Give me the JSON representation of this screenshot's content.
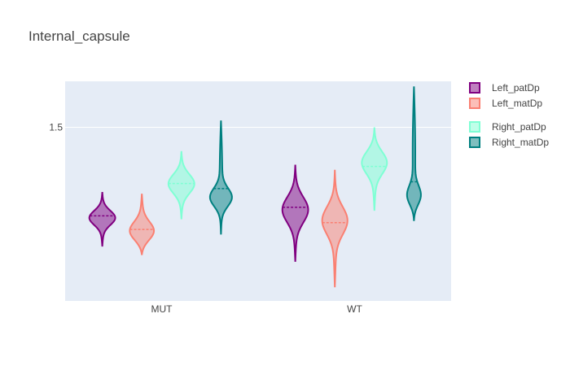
{
  "chart_data": {
    "type": "violin",
    "title": "Internal_capsule",
    "categories": [
      "MUT",
      "WT"
    ],
    "y_ticks": [
      1.5
    ],
    "ylim": [
      0.48,
      1.77
    ],
    "grid": true,
    "legend_position": "right",
    "colors": {
      "plot_bg": "#e5ecf6",
      "grid": "#ffffff"
    },
    "series": [
      {
        "name": "Left_patDp",
        "color": "#800080",
        "groups": [
          {
            "category": "MUT",
            "min": 0.8,
            "max": 1.12,
            "median": 0.98,
            "mode": 0.97,
            "spread": 0.045
          },
          {
            "category": "WT",
            "min": 0.71,
            "max": 1.28,
            "median": 1.03,
            "mode": 1.02,
            "spread": 0.08
          }
        ]
      },
      {
        "name": "Left_matDp",
        "color": "#fa8072",
        "groups": [
          {
            "category": "MUT",
            "min": 0.75,
            "max": 1.11,
            "median": 0.9,
            "mode": 0.88,
            "spread": 0.06
          },
          {
            "category": "WT",
            "min": 0.56,
            "max": 1.25,
            "median": 0.94,
            "mode": 0.96,
            "spread": 0.085
          }
        ]
      },
      {
        "name": "Right_patDp",
        "color": "#7fffd4",
        "groups": [
          {
            "category": "MUT",
            "min": 0.96,
            "max": 1.36,
            "median": 1.17,
            "mode": 1.17,
            "spread": 0.06
          },
          {
            "category": "WT",
            "min": 1.01,
            "max": 1.5,
            "median": 1.27,
            "mode": 1.3,
            "spread": 0.07
          }
        ]
      },
      {
        "name": "Right_matDp",
        "color": "#008080",
        "groups": [
          {
            "category": "MUT",
            "min": 0.87,
            "max": 1.54,
            "median": 1.14,
            "mode": 1.08,
            "spread": 0.055
          },
          {
            "category": "WT",
            "min": 0.95,
            "max": 1.74,
            "median": 1.18,
            "mode": 1.08,
            "spread": 0.06
          }
        ]
      }
    ]
  }
}
